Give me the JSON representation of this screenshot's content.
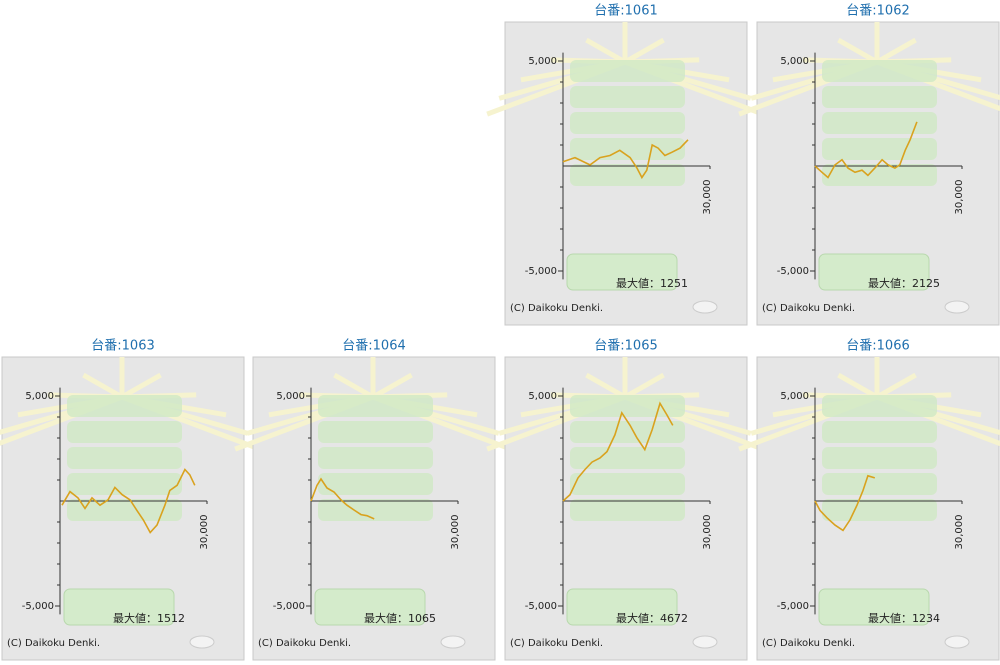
{
  "chart_data": [
    {
      "type": "line",
      "title": "台番:1061",
      "annotation": "最大値：1251",
      "credit": "(C) Daikoku Denki.",
      "color": "#d9a21e",
      "x": [
        0,
        2450,
        5500,
        7550,
        9600,
        11600,
        13700,
        15100,
        16100,
        17100,
        18200,
        19400,
        20800,
        22200,
        23900,
        25500
      ],
      "values": [
        200,
        400,
        50,
        400,
        500,
        750,
        400,
        -100,
        -550,
        -200,
        1000,
        850,
        500,
        650,
        850,
        1250
      ],
      "xlim": [
        0,
        30000
      ],
      "xticks": [
        {
          "value": 30000,
          "label": "30,000"
        }
      ],
      "ylim": [
        -5400,
        5400
      ],
      "yticks": [
        {
          "value": 5000,
          "label": "5,000"
        },
        {
          "value": -5000,
          "label": "-5,000"
        }
      ],
      "minor_yticks": [
        4000,
        3000,
        2000,
        1000,
        -1000,
        -2000,
        -3000,
        -4000
      ]
    },
    {
      "type": "line",
      "title": "台番:1062",
      "annotation": "最大値：2125",
      "credit": "(C) Daikoku Denki.",
      "color": "#d9a21e",
      "x": [
        0,
        1430,
        2650,
        4080,
        5510,
        6730,
        8160,
        9590,
        10800,
        12200,
        13700,
        14900,
        16300,
        17300,
        18400,
        19400,
        20800
      ],
      "values": [
        0,
        -300,
        -550,
        50,
        300,
        -100,
        -300,
        -200,
        -450,
        -100,
        300,
        50,
        -100,
        50,
        750,
        1250,
        2100
      ],
      "xlim": [
        0,
        30000
      ],
      "xticks": [
        {
          "value": 30000,
          "label": "30,000"
        }
      ],
      "ylim": [
        -5400,
        5400
      ],
      "yticks": [
        {
          "value": 5000,
          "label": "5,000"
        },
        {
          "value": -5000,
          "label": "-5,000"
        }
      ],
      "minor_yticks": [
        4000,
        3000,
        2000,
        1000,
        -1000,
        -2000,
        -3000,
        -4000
      ]
    },
    {
      "type": "line",
      "title": "台番:1063",
      "annotation": "最大値：1512",
      "credit": "(C) Daikoku Denki.",
      "color": "#d9a21e",
      "x": [
        400,
        2040,
        3670,
        5100,
        6530,
        8160,
        9790,
        11200,
        12700,
        14300,
        15700,
        17000,
        18400,
        19800,
        21400,
        22400,
        23900,
        25500,
        26500,
        27500
      ],
      "values": [
        -200,
        450,
        150,
        -350,
        150,
        -200,
        50,
        650,
        300,
        50,
        -450,
        -900,
        -1500,
        -1150,
        -200,
        500,
        750,
        1500,
        1250,
        750
      ],
      "xlim": [
        0,
        30000
      ],
      "xticks": [
        {
          "value": 30000,
          "label": "30,000"
        }
      ],
      "ylim": [
        -5400,
        5400
      ],
      "yticks": [
        {
          "value": 5000,
          "label": "5,000"
        },
        {
          "value": -5000,
          "label": "-5,000"
        }
      ],
      "minor_yticks": [
        4000,
        3000,
        2000,
        1000,
        -1000,
        -2000,
        -3000,
        -4000
      ]
    },
    {
      "type": "line",
      "title": "台番:1064",
      "annotation": "最大値：1065",
      "credit": "(C) Daikoku Denki.",
      "color": "#d9a21e",
      "x": [
        0,
        1220,
        2040,
        3260,
        4690,
        6120,
        7340,
        8770,
        10200,
        11400,
        12900
      ],
      "values": [
        0,
        750,
        1050,
        620,
        430,
        50,
        -200,
        -430,
        -650,
        -700,
        -850
      ],
      "xlim": [
        0,
        30000
      ],
      "xticks": [
        {
          "value": 30000,
          "label": "30,000"
        }
      ],
      "ylim": [
        -5400,
        5400
      ],
      "yticks": [
        {
          "value": 5000,
          "label": "5,000"
        },
        {
          "value": -5000,
          "label": "-5,000"
        }
      ],
      "minor_yticks": [
        4000,
        3000,
        2000,
        1000,
        -1000,
        -2000,
        -3000,
        -4000
      ]
    },
    {
      "type": "line",
      "title": "台番:1065",
      "annotation": "最大値：4672",
      "credit": "(C) Daikoku Denki.",
      "color": "#d9a21e",
      "x": [
        0,
        1430,
        3060,
        4490,
        5920,
        7550,
        8980,
        10600,
        12000,
        13700,
        15100,
        16700,
        18200,
        19800,
        21200,
        22400
      ],
      "values": [
        0,
        300,
        1100,
        1500,
        1850,
        2050,
        2350,
        3150,
        4200,
        3600,
        3000,
        2450,
        3400,
        4650,
        4100,
        3600
      ],
      "xlim": [
        0,
        30000
      ],
      "xticks": [
        {
          "value": 30000,
          "label": "30,000"
        }
      ],
      "ylim": [
        -5400,
        5400
      ],
      "yticks": [
        {
          "value": 5000,
          "label": "5,000"
        },
        {
          "value": -5000,
          "label": "-5,000"
        }
      ],
      "minor_yticks": [
        4000,
        3000,
        2000,
        1000,
        -1000,
        -2000,
        -3000,
        -4000
      ]
    },
    {
      "type": "line",
      "title": "台番:1066",
      "annotation": "最大値：1234",
      "credit": "(C) Daikoku Denki.",
      "color": "#d9a21e",
      "x": [
        0,
        1020,
        2450,
        4080,
        5710,
        7140,
        8570,
        9790,
        10800,
        12200
      ],
      "values": [
        0,
        -450,
        -800,
        -1150,
        -1400,
        -900,
        -200,
        500,
        1200,
        1100
      ],
      "xlim": [
        0,
        30000
      ],
      "xticks": [
        {
          "value": 30000,
          "label": "30,000"
        }
      ],
      "ylim": [
        -5400,
        5400
      ],
      "yticks": [
        {
          "value": 5000,
          "label": "5,000"
        },
        {
          "value": -5000,
          "label": "-5,000"
        }
      ],
      "minor_yticks": [
        4000,
        3000,
        2000,
        1000,
        -1000,
        -2000,
        -3000,
        -4000
      ]
    }
  ]
}
